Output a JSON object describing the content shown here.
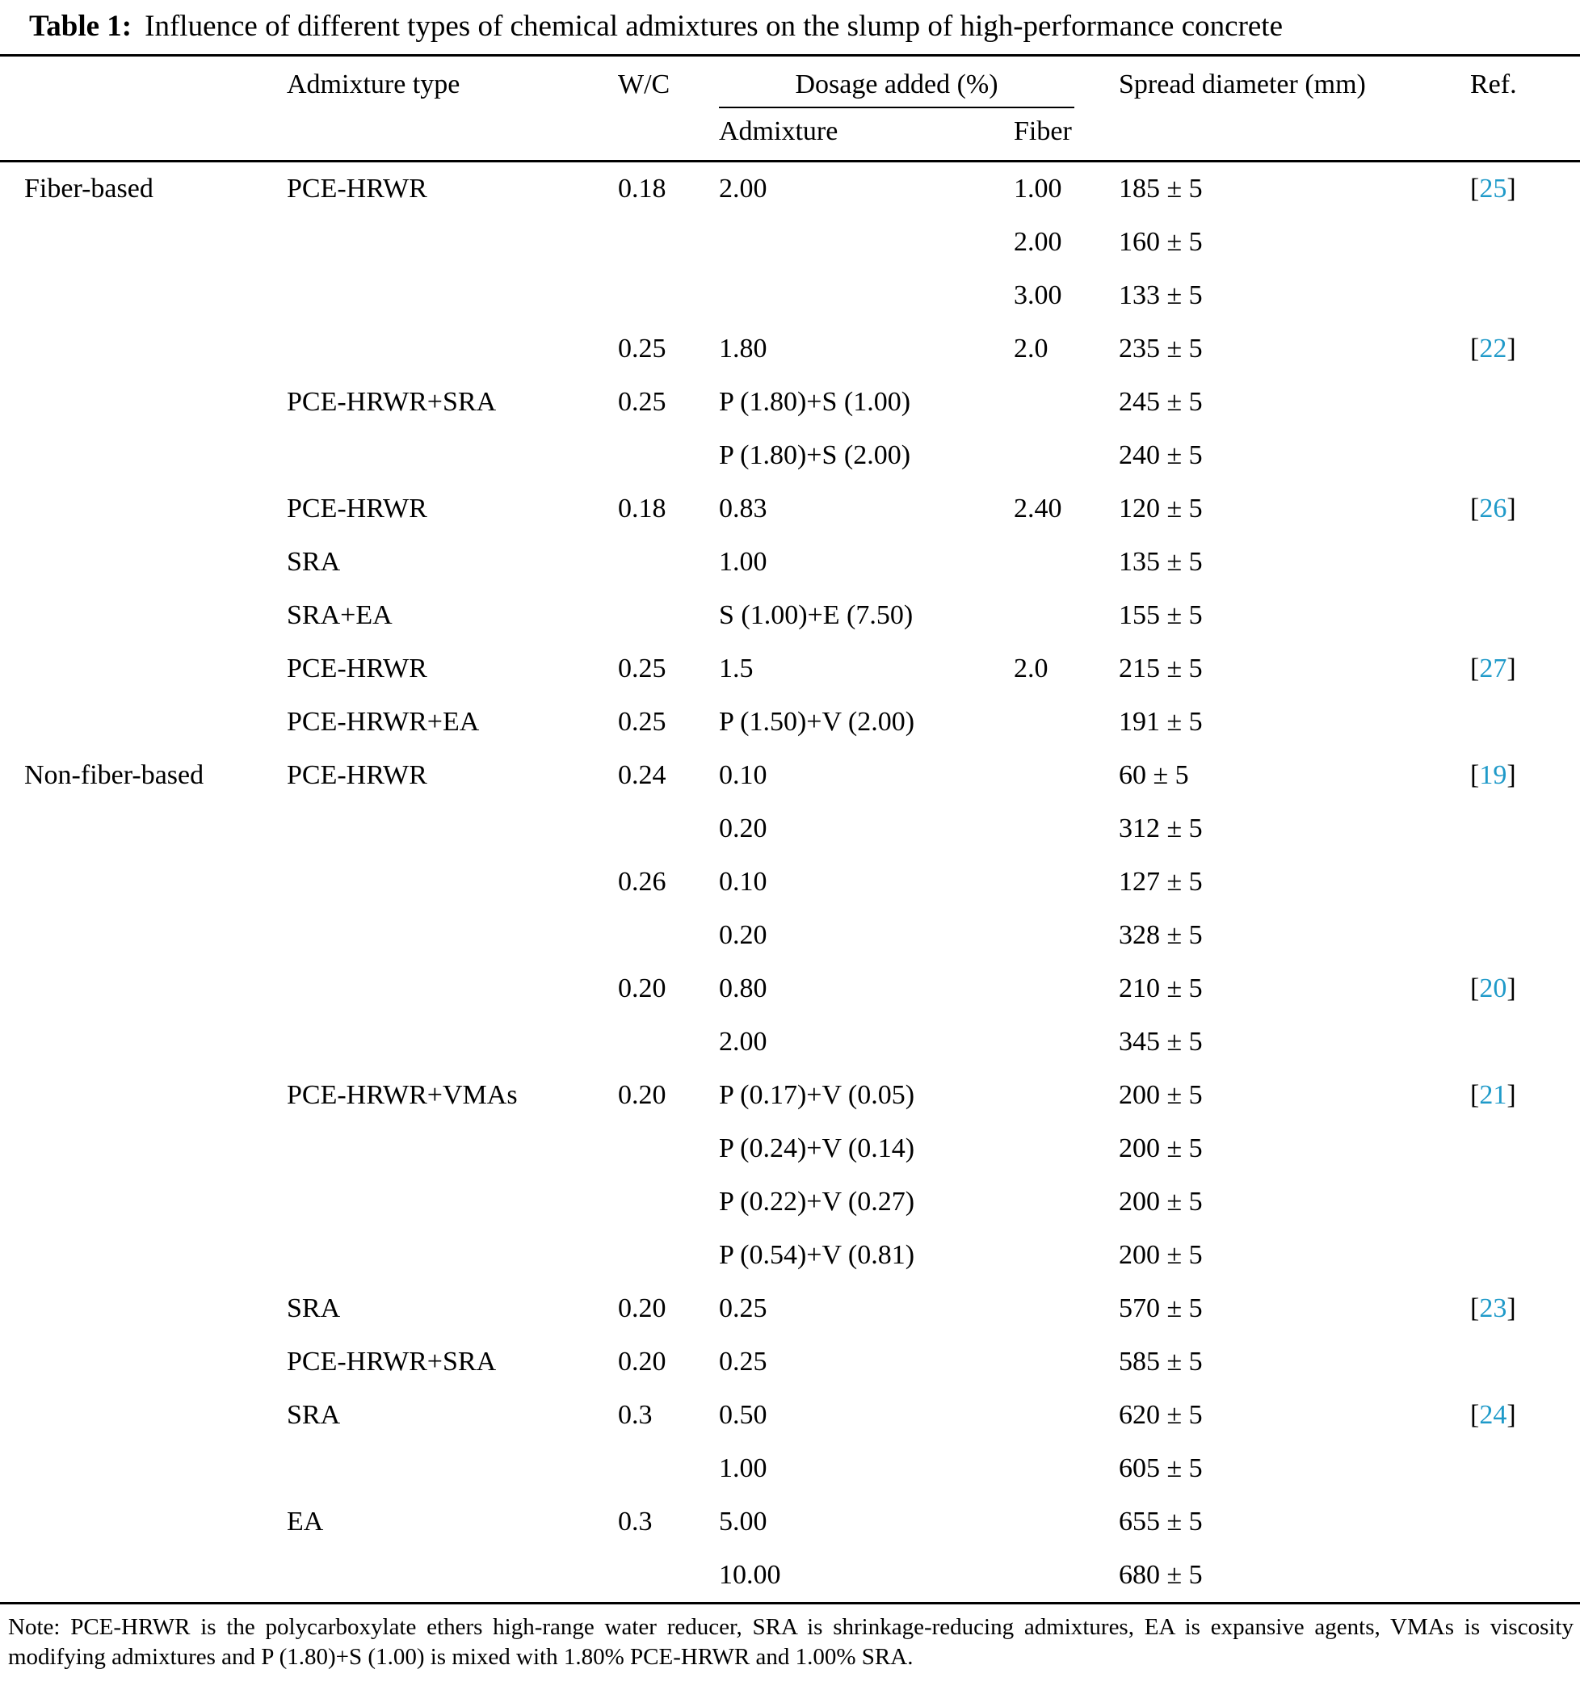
{
  "colors": {
    "ref_link": "#1f9ac9",
    "text": "#000000",
    "rule": "#000000"
  },
  "caption": {
    "label": "Table 1:",
    "text": "Influence of different types of chemical admixtures on the slump of high-performance concrete"
  },
  "table": {
    "header": {
      "group": "",
      "admixture_type": "Admixture type",
      "wc": "W/C",
      "dosage": "Dosage added (%)",
      "dosage_sub_admixture": "Admixture",
      "dosage_sub_fiber": "Fiber",
      "spread": "Spread diameter (mm)",
      "ref": "Ref."
    },
    "rows": [
      {
        "group": "Fiber-based",
        "type": "PCE-HRWR",
        "wc": "0.18",
        "admixture": "2.00",
        "fiber": "1.00",
        "spread": "185 ± 5",
        "ref": "25"
      },
      {
        "group": "",
        "type": "",
        "wc": "",
        "admixture": "",
        "fiber": "2.00",
        "spread": "160 ± 5",
        "ref": ""
      },
      {
        "group": "",
        "type": "",
        "wc": "",
        "admixture": "",
        "fiber": "3.00",
        "spread": "133 ± 5",
        "ref": ""
      },
      {
        "group": "",
        "type": "",
        "wc": "0.25",
        "admixture": "1.80",
        "fiber": "2.0",
        "spread": "235 ± 5",
        "ref": "22"
      },
      {
        "group": "",
        "type": "PCE-HRWR+SRA",
        "wc": "0.25",
        "admixture": "P (1.80)+S (1.00)",
        "fiber": "",
        "spread": "245 ± 5",
        "ref": ""
      },
      {
        "group": "",
        "type": "",
        "wc": "",
        "admixture": "P (1.80)+S (2.00)",
        "fiber": "",
        "spread": "240 ± 5",
        "ref": ""
      },
      {
        "group": "",
        "type": "PCE-HRWR",
        "wc": "0.18",
        "admixture": "0.83",
        "fiber": "2.40",
        "spread": "120 ± 5",
        "ref": "26"
      },
      {
        "group": "",
        "type": "SRA",
        "wc": "",
        "admixture": "1.00",
        "fiber": "",
        "spread": "135 ± 5",
        "ref": ""
      },
      {
        "group": "",
        "type": "SRA+EA",
        "wc": "",
        "admixture": "S (1.00)+E (7.50)",
        "fiber": "",
        "spread": "155 ± 5",
        "ref": ""
      },
      {
        "group": "",
        "type": "PCE-HRWR",
        "wc": "0.25",
        "admixture": "1.5",
        "fiber": "2.0",
        "spread": "215 ± 5",
        "ref": "27"
      },
      {
        "group": "",
        "type": "PCE-HRWR+EA",
        "wc": "0.25",
        "admixture": "P (1.50)+V (2.00)",
        "fiber": "",
        "spread": "191 ± 5",
        "ref": ""
      },
      {
        "group": "Non-fiber-based",
        "type": "PCE-HRWR",
        "wc": "0.24",
        "admixture": "0.10",
        "fiber": "",
        "spread": "60 ± 5",
        "ref": "19"
      },
      {
        "group": "",
        "type": "",
        "wc": "",
        "admixture": "0.20",
        "fiber": "",
        "spread": "312 ± 5",
        "ref": ""
      },
      {
        "group": "",
        "type": "",
        "wc": "0.26",
        "admixture": "0.10",
        "fiber": "",
        "spread": "127 ± 5",
        "ref": ""
      },
      {
        "group": "",
        "type": "",
        "wc": "",
        "admixture": "0.20",
        "fiber": "",
        "spread": "328 ± 5",
        "ref": ""
      },
      {
        "group": "",
        "type": "",
        "wc": "0.20",
        "admixture": "0.80",
        "fiber": "",
        "spread": "210 ± 5",
        "ref": "20"
      },
      {
        "group": "",
        "type": "",
        "wc": "",
        "admixture": "2.00",
        "fiber": "",
        "spread": "345 ± 5",
        "ref": ""
      },
      {
        "group": "",
        "type": "PCE-HRWR+VMAs",
        "wc": "0.20",
        "admixture": "P (0.17)+V (0.05)",
        "fiber": "",
        "spread": "200 ± 5",
        "ref": "21"
      },
      {
        "group": "",
        "type": "",
        "wc": "",
        "admixture": "P (0.24)+V (0.14)",
        "fiber": "",
        "spread": "200 ± 5",
        "ref": ""
      },
      {
        "group": "",
        "type": "",
        "wc": "",
        "admixture": "P (0.22)+V (0.27)",
        "fiber": "",
        "spread": "200 ± 5",
        "ref": ""
      },
      {
        "group": "",
        "type": "",
        "wc": "",
        "admixture": "P (0.54)+V (0.81)",
        "fiber": "",
        "spread": "200 ± 5",
        "ref": ""
      },
      {
        "group": "",
        "type": "SRA",
        "wc": "0.20",
        "admixture": "0.25",
        "fiber": "",
        "spread": "570 ± 5",
        "ref": "23"
      },
      {
        "group": "",
        "type": "PCE-HRWR+SRA",
        "wc": "0.20",
        "admixture": "0.25",
        "fiber": "",
        "spread": "585 ± 5",
        "ref": ""
      },
      {
        "group": "",
        "type": "SRA",
        "wc": "0.3",
        "admixture": "0.50",
        "fiber": "",
        "spread": "620 ± 5",
        "ref": "24"
      },
      {
        "group": "",
        "type": "",
        "wc": "",
        "admixture": "1.00",
        "fiber": "",
        "spread": "605 ± 5",
        "ref": ""
      },
      {
        "group": "",
        "type": "EA",
        "wc": "0.3",
        "admixture": "5.00",
        "fiber": "",
        "spread": "655 ± 5",
        "ref": ""
      },
      {
        "group": "",
        "type": "",
        "wc": "",
        "admixture": "10.00",
        "fiber": "",
        "spread": "680 ± 5",
        "ref": ""
      }
    ]
  },
  "note": "Note: PCE-HRWR is the polycarboxylate ethers high-range water reducer, SRA is shrinkage-reducing admixtures, EA is expansive agents, VMAs is viscosity modifying admixtures and P (1.80)+S (1.00) is mixed with 1.80% PCE-HRWR and 1.00% SRA."
}
